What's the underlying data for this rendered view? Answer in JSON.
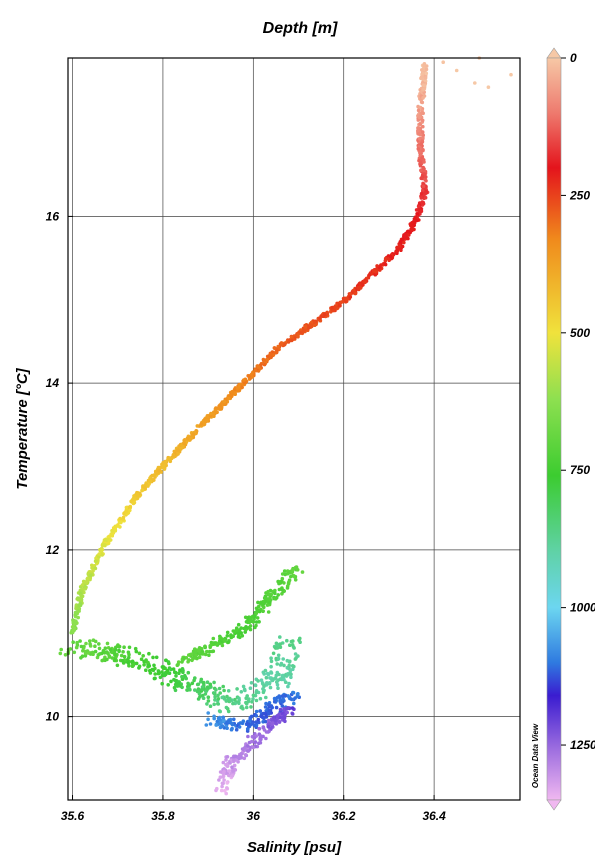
{
  "chart_data": {
    "type": "scatter",
    "title": "Depth [m]",
    "xlabel": "Salinity [psu]",
    "ylabel": "Temperature [°C]",
    "xlim": [
      35.59,
      36.59
    ],
    "ylim": [
      9.0,
      17.9
    ],
    "xticks": [
      35.6,
      35.8,
      36,
      36.2,
      36.4
    ],
    "xtick_labels": [
      "35.6",
      "35.8",
      "36",
      "36.2",
      "36.4"
    ],
    "yticks": [
      10,
      12,
      14,
      16
    ],
    "ytick_labels": [
      "10",
      "12",
      "14",
      "16"
    ],
    "grid": true,
    "colorbar": {
      "label": "Depth [m]",
      "range": [
        0,
        1350
      ],
      "ticks": [
        0,
        250,
        500,
        750,
        1000,
        1250
      ],
      "tick_labels": [
        "0",
        "250",
        "500",
        "750",
        "1000",
        "1250"
      ],
      "colors": [
        "#f6c8a6",
        "#ee7a6e",
        "#e4141c",
        "#f08a1c",
        "#f0e23c",
        "#8ee050",
        "#3ccc30",
        "#60d2a8",
        "#6cd6f0",
        "#2f7ae0",
        "#3a1cd0",
        "#a070e0",
        "#f0b8f0"
      ],
      "color_stops": [
        0,
        100,
        200,
        330,
        500,
        620,
        760,
        900,
        1000,
        1100,
        1160,
        1260,
        1350
      ]
    },
    "watermark": "Ocean Data View",
    "curves": [
      {
        "name": "",
        "band": 0.012,
        "points": [
          [
            36.38,
            17.85,
            0
          ],
          [
            36.37,
            17.3,
            50
          ],
          [
            36.37,
            16.8,
            110
          ],
          [
            36.38,
            16.3,
            160
          ],
          [
            36.36,
            15.95,
            200
          ],
          [
            36.32,
            15.6,
            215
          ],
          [
            36.2,
            14.98,
            245
          ],
          [
            36.05,
            14.4,
            285
          ],
          [
            35.95,
            13.85,
            340
          ],
          [
            35.85,
            13.3,
            395
          ],
          [
            35.75,
            12.7,
            450
          ],
          [
            35.67,
            12.05,
            520
          ],
          [
            35.62,
            11.5,
            580
          ],
          [
            35.6,
            11.0,
            640
          ]
        ]
      },
      {
        "name": "",
        "band": 0.06,
        "points": [
          [
            35.6,
            10.85,
            680
          ],
          [
            35.72,
            10.72,
            730
          ],
          [
            35.85,
            10.42,
            790
          ],
          [
            35.95,
            10.15,
            860
          ],
          [
            36.05,
            10.45,
            900
          ],
          [
            36.08,
            10.95,
            860
          ]
        ]
      },
      {
        "name": "",
        "band": 0.03,
        "points": [
          [
            35.84,
            10.65,
            700
          ],
          [
            35.98,
            11.05,
            740
          ],
          [
            36.1,
            11.8,
            700
          ]
        ]
      },
      {
        "name": "",
        "band": 0.04,
        "points": [
          [
            35.9,
            9.98,
            1060
          ],
          [
            35.97,
            9.88,
            1110
          ],
          [
            36.03,
            10.05,
            1120
          ],
          [
            36.09,
            10.28,
            1100
          ]
        ]
      },
      {
        "name": "",
        "band": 0.03,
        "points": [
          [
            36.08,
            10.1,
            1200
          ],
          [
            36.01,
            9.75,
            1260
          ],
          [
            35.95,
            9.45,
            1300
          ],
          [
            35.93,
            9.1,
            1345
          ]
        ]
      }
    ],
    "outliers": [
      [
        36.45,
        17.75,
        0
      ],
      [
        36.5,
        17.9,
        0
      ],
      [
        36.52,
        17.55,
        0
      ],
      [
        36.57,
        17.7,
        0
      ],
      [
        36.42,
        17.85,
        5
      ],
      [
        36.49,
        17.6,
        0
      ]
    ]
  }
}
